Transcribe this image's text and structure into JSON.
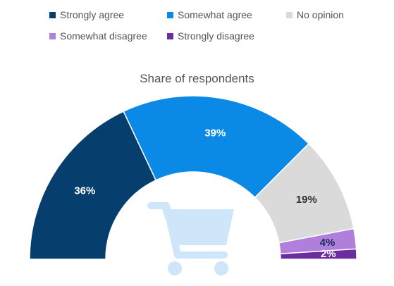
{
  "legend": [
    {
      "label": "Strongly agree",
      "color": "#063e6e"
    },
    {
      "label": "Somewhat agree",
      "color": "#0a8ae6"
    },
    {
      "label": "No opinion",
      "color": "#dadada"
    },
    {
      "label": "Somewhat disagree",
      "color": "#b07fdc"
    },
    {
      "label": "Strongly disagree",
      "color": "#6a2ea1"
    }
  ],
  "chart_data": {
    "type": "pie",
    "variant": "semicircle-donut",
    "title": "Share of respondents",
    "slices": [
      {
        "name": "Strongly agree",
        "value": 36,
        "label": "36%",
        "color": "#063e6e",
        "label_color": "#ffffff"
      },
      {
        "name": "Somewhat agree",
        "value": 39,
        "label": "39%",
        "color": "#0a8ae6",
        "label_color": "#ffffff"
      },
      {
        "name": "No opinion",
        "value": 19,
        "label": "19%",
        "color": "#dadada",
        "label_color": "#333333"
      },
      {
        "name": "Somewhat disagree",
        "value": 4,
        "label": "4%",
        "color": "#b07fdc",
        "label_color": "#1b2a5a"
      },
      {
        "name": "Strongly disagree",
        "value": 2,
        "label": "2%",
        "color": "#6a2ea1",
        "label_color": "#ffffff"
      }
    ],
    "center_icon": "shopping-cart-icon",
    "icon_color": "#cfe5fa"
  }
}
